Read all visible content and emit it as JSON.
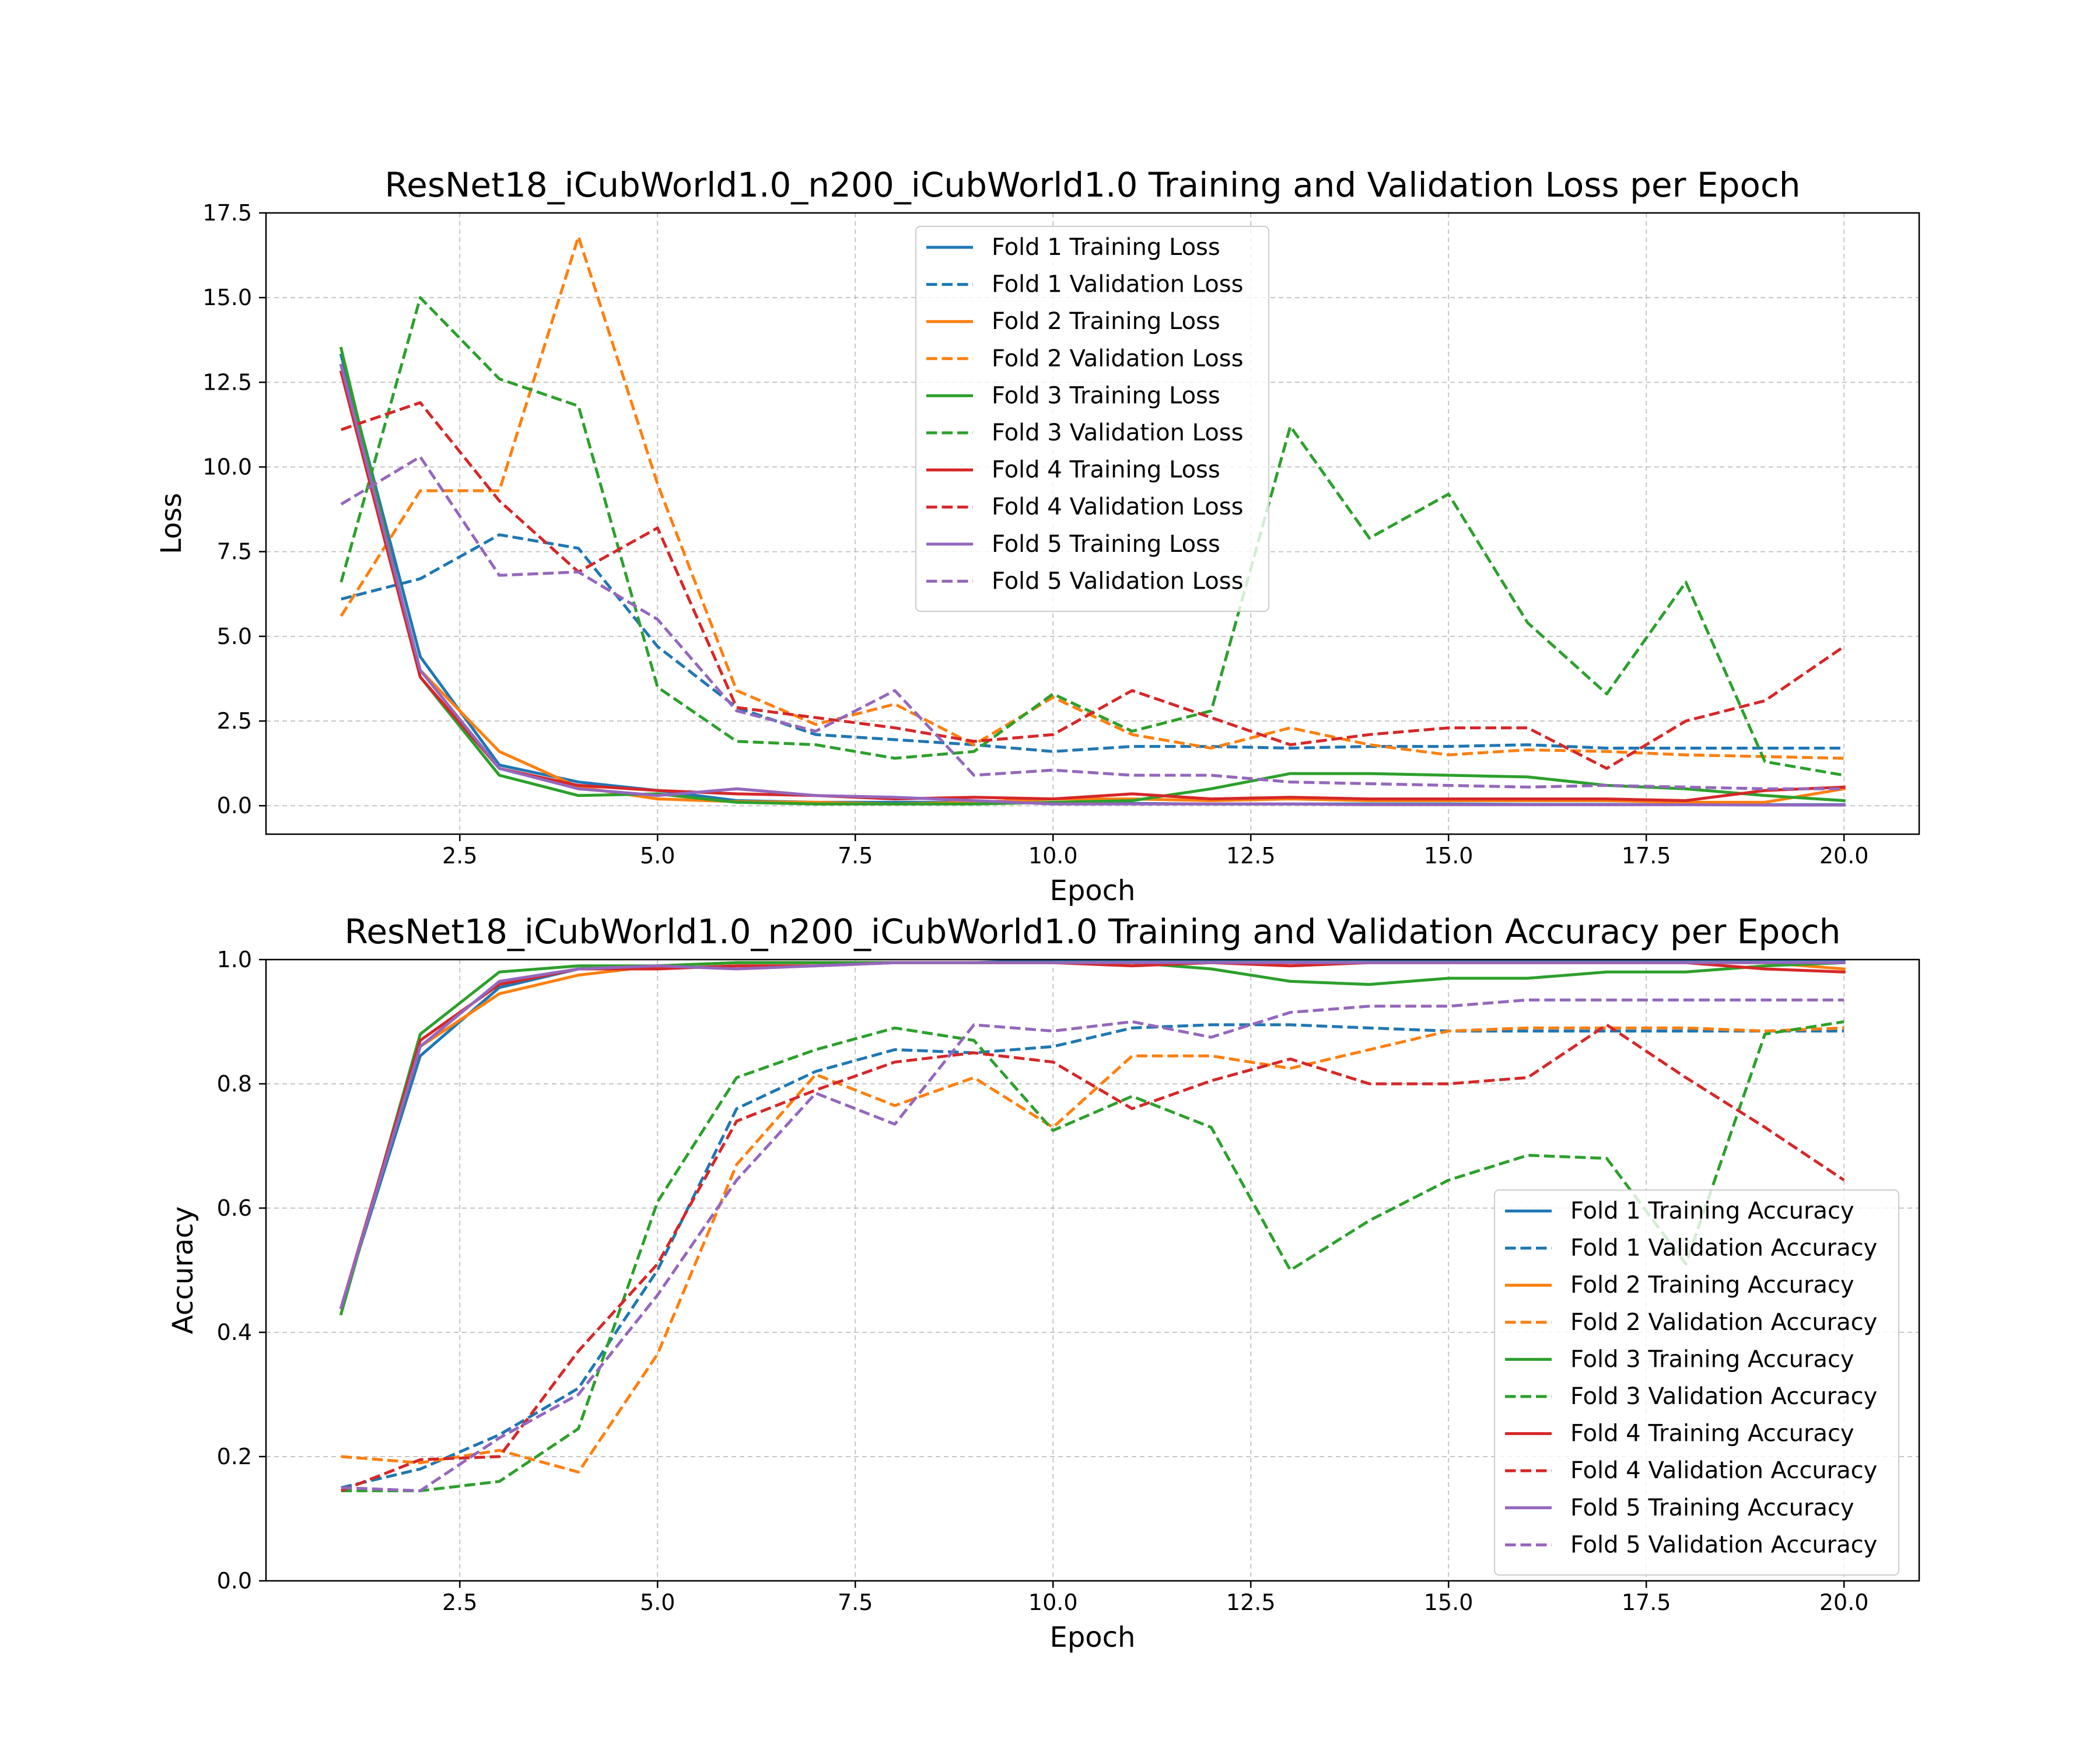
{
  "chart_data": [
    {
      "type": "line",
      "title": "ResNet18_iCubWorld1.0_n200_iCubWorld1.0 Training and Validation Loss per Epoch",
      "xlabel": "Epoch",
      "ylabel": "Loss",
      "xlim": [
        0.05,
        20.95
      ],
      "ylim": [
        -0.84,
        17.5
      ],
      "xticks": [
        2.5,
        5.0,
        7.5,
        10.0,
        12.5,
        15.0,
        17.5,
        20.0
      ],
      "xtick_labels": [
        "2.5",
        "5.0",
        "7.5",
        "10.0",
        "12.5",
        "15.0",
        "17.5",
        "20.0"
      ],
      "yticks": [
        0,
        2.5,
        5,
        7.5,
        10,
        12.5,
        15,
        17.5
      ],
      "ytick_labels": [
        "0.0",
        "2.5",
        "5.0",
        "7.5",
        "10.0",
        "12.5",
        "15.0",
        "17.5"
      ],
      "grid": true,
      "legend_position": "top-center",
      "x": [
        1,
        2,
        3,
        4,
        5,
        6,
        7,
        8,
        9,
        10,
        11,
        12,
        13,
        14,
        15,
        16,
        17,
        18,
        19,
        20
      ],
      "series": [
        {
          "name": "Fold 1 Training Loss",
          "color": "#1f77b4",
          "dash": false,
          "values": [
            13.3,
            4.4,
            1.2,
            0.7,
            0.45,
            0.15,
            0.1,
            0.1,
            0.1,
            0.08,
            0.07,
            0.05,
            0.05,
            0.05,
            0.05,
            0.04,
            0.04,
            0.03,
            0.03,
            0.03
          ]
        },
        {
          "name": "Fold 1 Validation Loss",
          "color": "#1f77b4",
          "dash": true,
          "values": [
            6.1,
            6.7,
            8.0,
            7.6,
            4.7,
            2.9,
            2.1,
            1.95,
            1.8,
            1.6,
            1.75,
            1.75,
            1.7,
            1.75,
            1.75,
            1.8,
            1.7,
            1.7,
            1.7,
            1.7
          ]
        },
        {
          "name": "Fold 2 Training Loss",
          "color": "#ff7f0e",
          "dash": false,
          "values": [
            13.0,
            4.0,
            1.6,
            0.55,
            0.2,
            0.12,
            0.1,
            0.05,
            0.1,
            0.2,
            0.2,
            0.15,
            0.2,
            0.15,
            0.15,
            0.15,
            0.15,
            0.1,
            0.1,
            0.5
          ]
        },
        {
          "name": "Fold 2 Validation Loss",
          "color": "#ff7f0e",
          "dash": true,
          "values": [
            5.6,
            9.3,
            9.3,
            16.8,
            9.5,
            3.4,
            2.4,
            3.0,
            1.8,
            3.2,
            2.1,
            1.7,
            2.3,
            1.8,
            1.5,
            1.65,
            1.6,
            1.5,
            1.45,
            1.4
          ]
        },
        {
          "name": "Fold 3 Training Loss",
          "color": "#2ca02c",
          "dash": false,
          "values": [
            13.5,
            3.8,
            0.9,
            0.3,
            0.35,
            0.1,
            0.05,
            0.05,
            0.05,
            0.1,
            0.15,
            0.5,
            0.95,
            0.95,
            0.9,
            0.85,
            0.6,
            0.5,
            0.3,
            0.15
          ]
        },
        {
          "name": "Fold 3 Validation Loss",
          "color": "#2ca02c",
          "dash": true,
          "values": [
            6.6,
            15.0,
            12.6,
            11.8,
            3.5,
            1.9,
            1.8,
            1.4,
            1.6,
            3.3,
            2.2,
            2.8,
            11.2,
            7.9,
            9.2,
            5.4,
            3.3,
            6.6,
            1.3,
            0.9
          ]
        },
        {
          "name": "Fold 4 Training Loss",
          "color": "#d62728",
          "dash": false,
          "values": [
            12.8,
            3.8,
            1.1,
            0.6,
            0.45,
            0.35,
            0.3,
            0.2,
            0.25,
            0.2,
            0.35,
            0.2,
            0.25,
            0.2,
            0.2,
            0.2,
            0.2,
            0.15,
            0.45,
            0.55
          ]
        },
        {
          "name": "Fold 4 Validation Loss",
          "color": "#d62728",
          "dash": true,
          "values": [
            11.1,
            11.9,
            9.0,
            6.9,
            8.2,
            2.9,
            2.6,
            2.3,
            1.9,
            2.1,
            3.4,
            2.6,
            1.8,
            2.1,
            2.3,
            2.3,
            1.1,
            2.5,
            3.1,
            4.7
          ]
        },
        {
          "name": "Fold 5 Training Loss",
          "color": "#9467bd",
          "dash": false,
          "values": [
            13.0,
            4.0,
            1.1,
            0.5,
            0.3,
            0.5,
            0.3,
            0.25,
            0.15,
            0.05,
            0.05,
            0.05,
            0.05,
            0.03,
            0.03,
            0.03,
            0.03,
            0.03,
            0.02,
            0.02
          ]
        },
        {
          "name": "Fold 5 Validation Loss",
          "color": "#9467bd",
          "dash": true,
          "values": [
            8.9,
            10.3,
            6.8,
            6.9,
            5.5,
            2.8,
            2.2,
            3.4,
            0.9,
            1.05,
            0.9,
            0.9,
            0.7,
            0.65,
            0.6,
            0.55,
            0.6,
            0.55,
            0.5,
            0.5
          ]
        }
      ]
    },
    {
      "type": "line",
      "title": "ResNet18_iCubWorld1.0_n200_iCubWorld1.0 Training and Validation Accuracy per Epoch",
      "xlabel": "Epoch",
      "ylabel": "Accuracy",
      "xlim": [
        0.05,
        20.95
      ],
      "ylim": [
        0,
        1
      ],
      "xticks": [
        2.5,
        5.0,
        7.5,
        10.0,
        12.5,
        15.0,
        17.5,
        20.0
      ],
      "xtick_labels": [
        "2.5",
        "5.0",
        "7.5",
        "10.0",
        "12.5",
        "15.0",
        "17.5",
        "20.0"
      ],
      "yticks": [
        0,
        0.2,
        0.4,
        0.6,
        0.8,
        1.0
      ],
      "ytick_labels": [
        "0.0",
        "0.2",
        "0.4",
        "0.6",
        "0.8",
        "1.0"
      ],
      "grid": true,
      "legend_position": "lower-right",
      "x": [
        1,
        2,
        3,
        4,
        5,
        6,
        7,
        8,
        9,
        10,
        11,
        12,
        13,
        14,
        15,
        16,
        17,
        18,
        19,
        20
      ],
      "series": [
        {
          "name": "Fold 1 Training Accuracy",
          "color": "#1f77b4",
          "dash": false,
          "values": [
            0.44,
            0.845,
            0.955,
            0.985,
            0.99,
            0.995,
            0.995,
            0.995,
            0.995,
            1.0,
            1.0,
            1.0,
            1.0,
            1.0,
            1.0,
            1.0,
            1.0,
            1.0,
            1.0,
            1.0
          ]
        },
        {
          "name": "Fold 1 Validation Accuracy",
          "color": "#1f77b4",
          "dash": true,
          "values": [
            0.15,
            0.18,
            0.235,
            0.31,
            0.5,
            0.76,
            0.82,
            0.855,
            0.85,
            0.86,
            0.89,
            0.895,
            0.895,
            0.89,
            0.885,
            0.885,
            0.885,
            0.885,
            0.885,
            0.885
          ]
        },
        {
          "name": "Fold 2 Training Accuracy",
          "color": "#ff7f0e",
          "dash": false,
          "values": [
            0.44,
            0.86,
            0.945,
            0.975,
            0.99,
            0.995,
            0.995,
            0.995,
            0.995,
            0.995,
            0.995,
            0.995,
            0.995,
            0.995,
            0.995,
            0.995,
            0.995,
            0.995,
            0.995,
            0.985
          ]
        },
        {
          "name": "Fold 2 Validation Accuracy",
          "color": "#ff7f0e",
          "dash": true,
          "values": [
            0.2,
            0.19,
            0.21,
            0.175,
            0.365,
            0.67,
            0.815,
            0.765,
            0.81,
            0.73,
            0.845,
            0.845,
            0.825,
            0.855,
            0.885,
            0.89,
            0.89,
            0.89,
            0.885,
            0.89
          ]
        },
        {
          "name": "Fold 3 Training Accuracy",
          "color": "#2ca02c",
          "dash": false,
          "values": [
            0.43,
            0.88,
            0.98,
            0.99,
            0.99,
            0.995,
            0.995,
            0.995,
            0.995,
            0.995,
            0.995,
            0.985,
            0.965,
            0.96,
            0.97,
            0.97,
            0.98,
            0.98,
            0.99,
            0.995
          ]
        },
        {
          "name": "Fold 3 Validation Accuracy",
          "color": "#2ca02c",
          "dash": true,
          "values": [
            0.145,
            0.145,
            0.16,
            0.245,
            0.61,
            0.81,
            0.855,
            0.89,
            0.87,
            0.725,
            0.78,
            0.73,
            0.5,
            0.58,
            0.645,
            0.685,
            0.68,
            0.51,
            0.88,
            0.9
          ]
        },
        {
          "name": "Fold 4 Training Accuracy",
          "color": "#d62728",
          "dash": false,
          "values": [
            0.44,
            0.87,
            0.96,
            0.985,
            0.985,
            0.99,
            0.99,
            0.995,
            0.995,
            0.995,
            0.99,
            0.995,
            0.99,
            0.995,
            0.995,
            0.995,
            0.995,
            0.995,
            0.985,
            0.98
          ]
        },
        {
          "name": "Fold 4 Validation Accuracy",
          "color": "#d62728",
          "dash": true,
          "values": [
            0.145,
            0.195,
            0.2,
            0.37,
            0.51,
            0.74,
            0.79,
            0.835,
            0.85,
            0.835,
            0.76,
            0.805,
            0.84,
            0.8,
            0.8,
            0.81,
            0.895,
            0.81,
            0.73,
            0.645
          ]
        },
        {
          "name": "Fold 5 Training Accuracy",
          "color": "#9467bd",
          "dash": false,
          "values": [
            0.44,
            0.86,
            0.965,
            0.985,
            0.99,
            0.985,
            0.99,
            0.995,
            0.995,
            0.995,
            0.995,
            0.995,
            0.995,
            0.995,
            0.995,
            0.995,
            0.995,
            0.995,
            0.995,
            0.995
          ]
        },
        {
          "name": "Fold 5 Validation Accuracy",
          "color": "#9467bd",
          "dash": true,
          "values": [
            0.15,
            0.145,
            0.23,
            0.3,
            0.46,
            0.645,
            0.785,
            0.735,
            0.895,
            0.885,
            0.9,
            0.875,
            0.915,
            0.925,
            0.925,
            0.935,
            0.935,
            0.935,
            0.935,
            0.935
          ]
        }
      ]
    }
  ]
}
